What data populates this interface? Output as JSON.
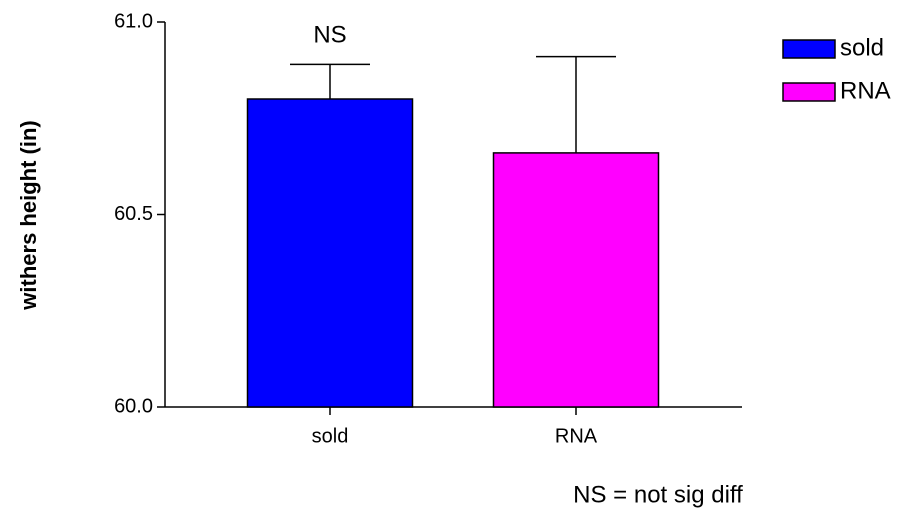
{
  "chart_data": {
    "type": "bar",
    "y_label": "withers height (in)",
    "categories": [
      "sold",
      "RNA"
    ],
    "values": [
      60.8,
      60.66
    ],
    "errors": [
      0.09,
      0.25
    ],
    "colors": [
      "#0000ff",
      "#ff00ff"
    ],
    "ylim": [
      60.0,
      61.0
    ],
    "yticks": [
      {
        "value": 60.0,
        "label": "60.0"
      },
      60.5,
      {
        "value": 61.0,
        "label": "61.0"
      }
    ],
    "legend": "top-right",
    "annotations": [
      "NS",
      "NS = not sig diff"
    ]
  }
}
